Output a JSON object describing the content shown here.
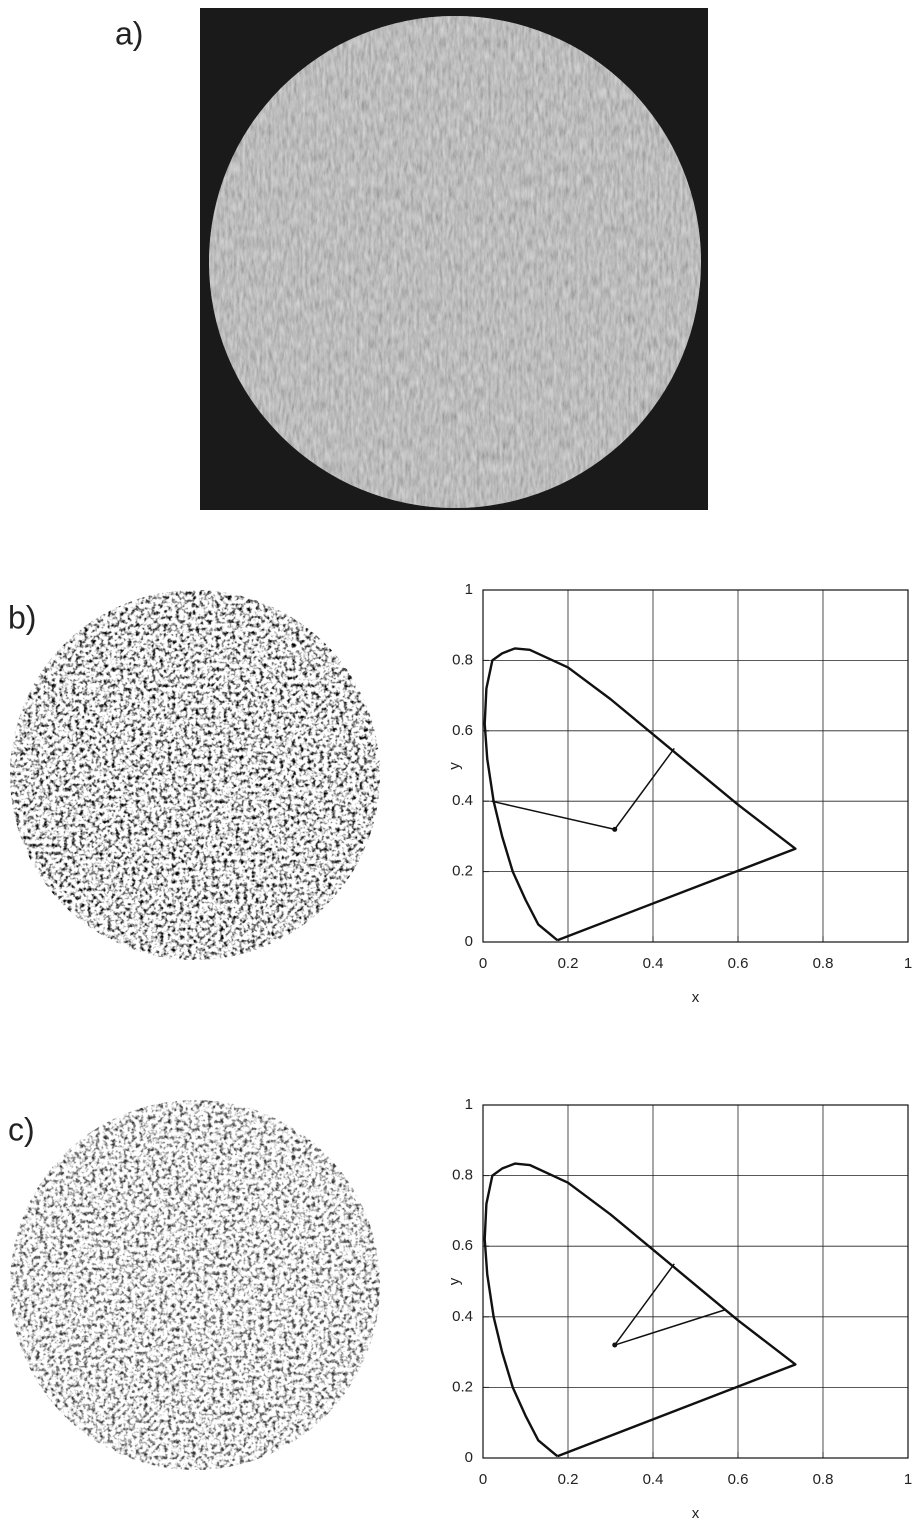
{
  "panel_labels": [
    "a)",
    "b)",
    "c)"
  ],
  "chart_data": [
    {
      "type": "line",
      "xlabel": "x",
      "ylabel": "y",
      "xlim": [
        0,
        1
      ],
      "ylim": [
        0,
        1
      ],
      "xticks": [
        0,
        0.2,
        0.4,
        0.6,
        0.8,
        1
      ],
      "yticks": [
        0,
        0.2,
        0.4,
        0.6,
        0.8,
        1
      ],
      "grid": true,
      "series": [
        {
          "color": "#111111",
          "style": "line",
          "x": [
            0.175,
            0.16,
            0.13,
            0.1,
            0.07,
            0.045,
            0.025,
            0.01,
            0.004,
            0.008,
            0.022,
            0.045,
            0.075,
            0.11,
            0.2,
            0.3,
            0.4,
            0.5,
            0.6,
            0.735,
            0.175
          ],
          "values": [
            0.005,
            0.02,
            0.05,
            0.12,
            0.2,
            0.3,
            0.4,
            0.52,
            0.62,
            0.72,
            0.8,
            0.82,
            0.834,
            0.83,
            0.78,
            0.69,
            0.59,
            0.49,
            0.39,
            0.265,
            0.005
          ]
        },
        {
          "color": "#111111",
          "style": "line",
          "x": [
            0.45,
            0.31,
            0.02
          ],
          "values": [
            0.55,
            0.32,
            0.4
          ]
        },
        {
          "color": "#111111",
          "style": "marker",
          "x": [
            0.31
          ],
          "values": [
            0.32
          ]
        }
      ]
    },
    {
      "type": "line",
      "xlabel": "x",
      "ylabel": "y",
      "xlim": [
        0,
        1
      ],
      "ylim": [
        0,
        1
      ],
      "xticks": [
        0,
        0.2,
        0.4,
        0.6,
        0.8,
        1
      ],
      "yticks": [
        0,
        0.2,
        0.4,
        0.6,
        0.8,
        1
      ],
      "grid": true,
      "series": [
        {
          "color": "#111111",
          "style": "line",
          "x": [
            0.175,
            0.16,
            0.13,
            0.1,
            0.07,
            0.045,
            0.025,
            0.01,
            0.004,
            0.008,
            0.022,
            0.045,
            0.075,
            0.11,
            0.2,
            0.3,
            0.4,
            0.5,
            0.6,
            0.735,
            0.175
          ],
          "values": [
            0.005,
            0.02,
            0.05,
            0.12,
            0.2,
            0.3,
            0.4,
            0.52,
            0.62,
            0.72,
            0.8,
            0.82,
            0.834,
            0.83,
            0.78,
            0.69,
            0.59,
            0.49,
            0.39,
            0.265,
            0.005
          ]
        },
        {
          "color": "#111111",
          "style": "line",
          "x": [
            0.45,
            0.31,
            0.57
          ],
          "values": [
            0.55,
            0.32,
            0.42
          ]
        },
        {
          "color": "#111111",
          "style": "marker",
          "x": [
            0.31
          ],
          "values": [
            0.32
          ]
        }
      ]
    }
  ]
}
